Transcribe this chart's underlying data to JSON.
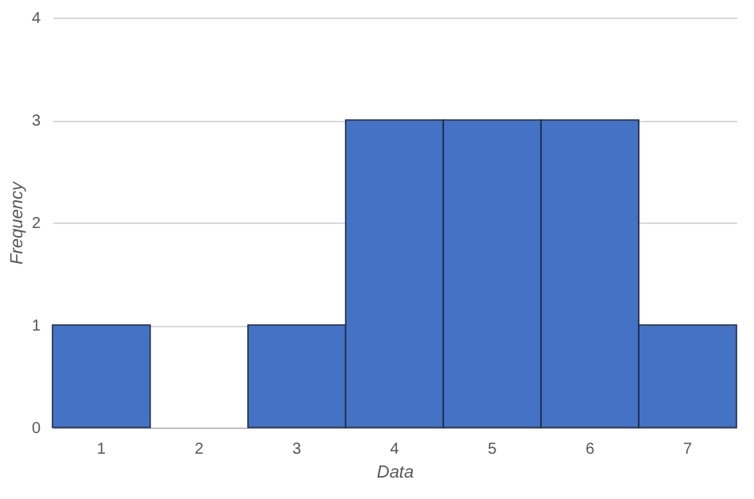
{
  "chart_data": {
    "type": "bar",
    "xlabel": "Data",
    "ylabel": "Frequency",
    "categories": [
      "1",
      "2",
      "3",
      "4",
      "5",
      "6",
      "7"
    ],
    "values": [
      1,
      0,
      1,
      3,
      3,
      3,
      1
    ],
    "color": "#4472c4",
    "ylim": [
      0,
      4
    ],
    "yticks": [
      0,
      1,
      2,
      3,
      4
    ],
    "grid": "y"
  }
}
